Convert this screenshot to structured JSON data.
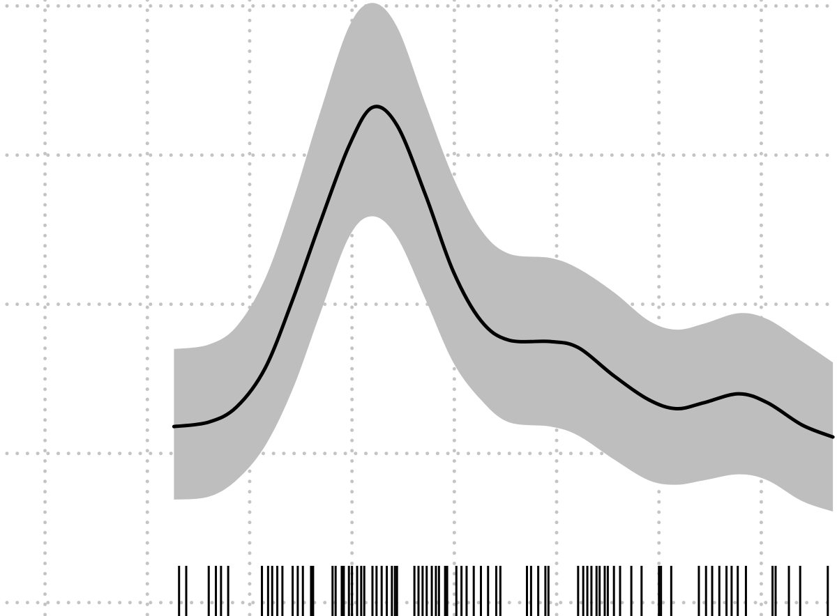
{
  "chart_data": {
    "type": "line",
    "x": [
      1.26,
      1.6,
      1.87,
      2.15,
      2.42,
      2.69,
      2.97,
      3.2,
      3.44,
      3.72,
      3.99,
      4.26,
      4.53,
      4.94,
      5.21,
      5.56,
      5.9,
      6.17,
      6.44,
      6.78,
      7.06,
      7.4,
      7.7
    ],
    "series": [
      {
        "color": "#000000",
        "values": [
          1.18,
          1.21,
          1.31,
          1.57,
          2.03,
          2.55,
          3.06,
          3.32,
          3.2,
          2.73,
          2.22,
          1.89,
          1.76,
          1.75,
          1.71,
          1.52,
          1.36,
          1.3,
          1.34,
          1.4,
          1.34,
          1.19,
          1.11
        ]
      }
    ],
    "band": {
      "color": "#bebebe",
      "upper": [
        1.7,
        1.73,
        1.85,
        2.17,
        2.69,
        3.29,
        3.86,
        4.02,
        3.86,
        3.34,
        2.85,
        2.5,
        2.34,
        2.31,
        2.24,
        2.08,
        1.89,
        1.83,
        1.87,
        1.94,
        1.9,
        1.75,
        1.61
      ],
      "lower": [
        0.69,
        0.71,
        0.82,
        1.05,
        1.43,
        1.94,
        2.45,
        2.59,
        2.45,
        2.03,
        1.61,
        1.36,
        1.21,
        1.18,
        1.12,
        0.96,
        0.82,
        0.79,
        0.82,
        0.86,
        0.82,
        0.68,
        0.61
      ]
    },
    "rug": {
      "color": "#000000",
      "values": [
        1.31,
        1.38,
        1.6,
        1.67,
        1.72,
        1.79,
        2.12,
        2.18,
        2.22,
        2.27,
        2.32,
        2.42,
        2.47,
        2.52,
        2.6,
        2.62,
        2.81,
        2.84,
        2.9,
        2.92,
        2.97,
        3.0,
        3.05,
        3.09,
        3.12,
        3.2,
        3.24,
        3.29,
        3.34,
        3.39,
        3.42,
        3.44,
        3.61,
        3.65,
        3.69,
        3.73,
        3.78,
        3.82,
        3.85,
        3.91,
        3.93,
        4.02,
        4.07,
        4.12,
        4.19,
        4.26,
        4.33,
        4.41,
        4.45,
        4.71,
        4.75,
        4.82,
        4.89,
        4.92,
        5.21,
        5.26,
        5.3,
        5.34,
        5.39,
        5.42,
        5.47,
        5.5,
        5.56,
        5.62,
        5.73,
        5.83,
        6.0,
        6.02,
        6.12,
        6.39,
        6.46,
        6.52,
        6.59,
        6.66,
        6.71,
        6.77,
        6.85,
        7.11,
        7.14,
        7.27,
        7.38,
        7.65
      ]
    },
    "xlim": [
      -0.44,
      7.74
    ],
    "ylim": [
      -0.09,
      4.04
    ],
    "xticks": [
      0,
      1,
      2,
      3,
      4,
      5,
      6,
      7
    ],
    "yticks": [
      0,
      1,
      2,
      3,
      4
    ],
    "grid": true
  }
}
